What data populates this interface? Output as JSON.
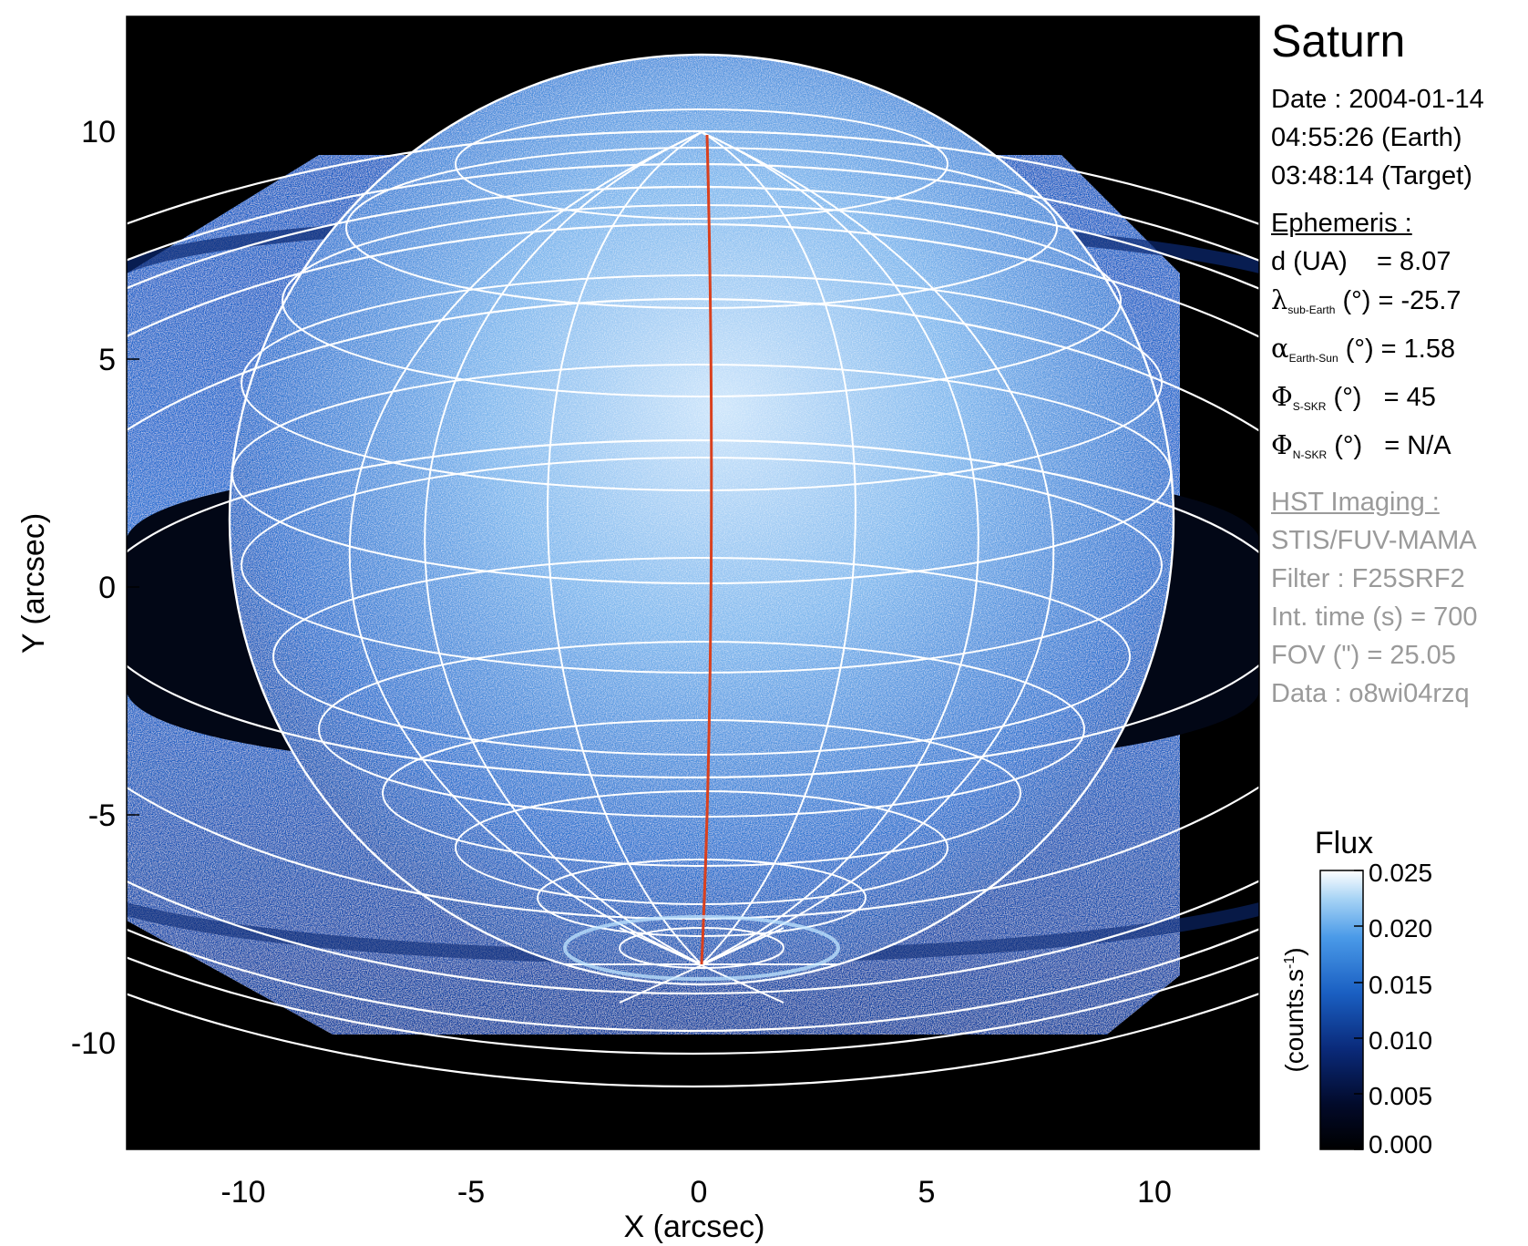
{
  "image": {
    "subject": "Saturn",
    "colormap_colors": [
      "#000000",
      "#020a2a",
      "#0a2a7a",
      "#1a5fc2",
      "#4a9ae8",
      "#a8d4f5",
      "#ffffff"
    ],
    "grid_color": "#ffffff",
    "meridian_color": "#d9401e"
  },
  "axes": {
    "x_title": "X (arcsec)",
    "y_title": "Y (arcsec)",
    "x_ticks": [
      "-10",
      "-5",
      "0",
      "5",
      "10"
    ],
    "y_ticks": [
      "10",
      "5",
      "0",
      "-5",
      "-10"
    ]
  },
  "info": {
    "title": "Saturn",
    "date_line": "Date : 2004-01-14",
    "time_earth": "04:55:26 (Earth)",
    "time_target": "03:48:14 (Target)",
    "ephemeris_heading": "Ephemeris :",
    "d_label": "d (UA)",
    "d_value": "= 8.07",
    "lambda_symbol": "λ",
    "lambda_sub": "sub-Earth",
    "lambda_unit": "(°)",
    "lambda_value": "= -25.7",
    "alpha_symbol": "α",
    "alpha_sub": "Earth-Sun",
    "alpha_unit": "(°)",
    "alpha_value": "= 1.58",
    "phi_symbol": "Φ",
    "phi_s_sub": "S-SKR",
    "phi_s_unit": "(°)",
    "phi_s_value": "= 45",
    "phi_n_sub": "N-SKR",
    "phi_n_unit": "(°)",
    "phi_n_value": "= N/A",
    "hst_heading": "HST Imaging :",
    "instrument": "STIS/FUV-MAMA",
    "filter": "Filter : F25SRF2",
    "int_time": "Int. time (s) = 700",
    "fov": "FOV (\") = 25.05",
    "data_id": "Data : o8wi04rzq"
  },
  "colorbar": {
    "title": "Flux",
    "unit_label": "(counts.s",
    "unit_exp": "-1",
    "unit_close": ")",
    "ticks": [
      "0.025",
      "0.020",
      "0.015",
      "0.010",
      "0.005",
      "0.000"
    ]
  }
}
